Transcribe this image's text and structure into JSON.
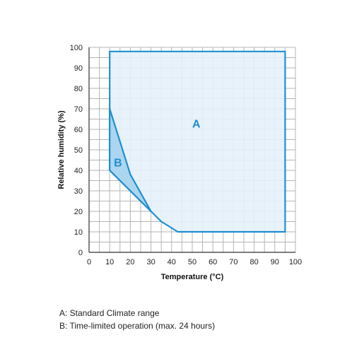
{
  "chart_data": {
    "type": "area",
    "xlabel": "Temperature (°C)",
    "ylabel": "Relative humidity (%)",
    "xlim": [
      0,
      100
    ],
    "ylim": [
      0,
      100
    ],
    "x_ticks": [
      0,
      10,
      20,
      30,
      40,
      50,
      60,
      70,
      80,
      90,
      100
    ],
    "y_ticks": [
      0,
      10,
      20,
      30,
      40,
      50,
      60,
      70,
      80,
      90,
      100
    ],
    "grid": true,
    "regions": [
      {
        "name": "A",
        "label_at": [
          52,
          63
        ],
        "polygon": [
          [
            10,
            98
          ],
          [
            95,
            98
          ],
          [
            95,
            10
          ],
          [
            43,
            10
          ],
          [
            35,
            15
          ],
          [
            30,
            20
          ],
          [
            20,
            30
          ],
          [
            10,
            40
          ]
        ]
      },
      {
        "name": "B",
        "label_at": [
          14,
          44
        ],
        "polygon": [
          [
            10,
            70
          ],
          [
            20,
            38
          ],
          [
            30,
            20
          ],
          [
            20,
            30
          ],
          [
            10,
            40
          ]
        ]
      }
    ],
    "colors": {
      "outline": "#1f8fd0",
      "fill_a": "#e4f1fa",
      "fill_b": "#a9d4ef",
      "grid": "#b5b5b5",
      "label": "#1f8fd0"
    }
  },
  "legend_notes": [
    "A: Standard Climate range",
    "B: Time-limited operation (max. 24 hours)"
  ]
}
